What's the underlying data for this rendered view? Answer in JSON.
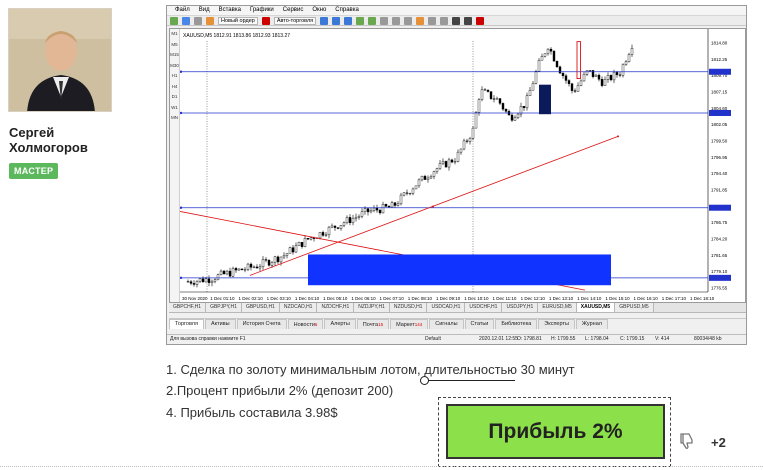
{
  "author": {
    "name_line1": "Сергей",
    "name_line2": "Холмогоров",
    "badge": "МАСТЕР"
  },
  "terminal": {
    "menu": [
      "Файл",
      "Вид",
      "Вставка",
      "Графики",
      "Сервис",
      "Окно",
      "Справка"
    ],
    "toolbar": {
      "new_order": "Новый ордер",
      "auto_trading": "Авто-торговля"
    },
    "chart_header": "XAUUSD,M5  1812.91 1813.86 1812.93 1813.27",
    "timeframes": [
      "M1",
      "M5",
      "M15",
      "M30",
      "H1",
      "H4",
      "D1",
      "W1",
      "MN"
    ],
    "price_labels": [
      "1814.80",
      "1812.25",
      "1809.70",
      "1807.15",
      "1804.60",
      "1802.05",
      "1799.50",
      "1796.95",
      "1794.40",
      "1791.85",
      "1789.30",
      "1786.75",
      "1784.20",
      "1781.65",
      "1779.10",
      "1776.55"
    ],
    "time_labels": [
      "30 Nov 2020",
      "1 Dec 01:10",
      "1 Dec 02:10",
      "1 Dec 03:10",
      "1 Dec 04:10",
      "1 Dec 05:10",
      "1 Dec 06:10",
      "1 Dec 07:10",
      "1 Dec 08:10",
      "1 Dec 09:10",
      "1 Dec 10:10",
      "1 Dec 11:10",
      "1 Dec 12:10",
      "1 Dec 13:10",
      "1 Dec 14:10",
      "1 Dec 15:10",
      "1 Dec 16:10",
      "1 Dec 17:10",
      "1 Dec 18:10"
    ],
    "symbol_tabs": [
      "GBPCHF,H1",
      "GBPJPY,H1",
      "GBPUSD,H1",
      "NZDCAD,H1",
      "NZDCHF,H1",
      "NZDJPY,H1",
      "NZDUSD,H1",
      "USDCAD,H1",
      "USDCHF,H1",
      "USDJPY,H1",
      "EURUSD,M5",
      "XAUUSD,M5",
      "GBPUSD,M5"
    ],
    "active_symbol_tab": "XAUUSD,M5",
    "terminal_tabs": [
      {
        "label": "Торговля",
        "count": ""
      },
      {
        "label": "Активы",
        "count": ""
      },
      {
        "label": "История Счета",
        "count": ""
      },
      {
        "label": "Новости",
        "count": "6"
      },
      {
        "label": "Алерты",
        "count": ""
      },
      {
        "label": "Почта",
        "count": "15"
      },
      {
        "label": "Маркет",
        "count": "144"
      },
      {
        "label": "Сигналы",
        "count": ""
      },
      {
        "label": "Статьи",
        "count": ""
      },
      {
        "label": "Библиотека",
        "count": ""
      },
      {
        "label": "Эксперты",
        "count": ""
      },
      {
        "label": "Журнал",
        "count": ""
      }
    ],
    "status": {
      "help": "Для вызова справки нажмите F1",
      "profile": "Default",
      "datetime": "2020.12.01 12:55",
      "open": "O: 1798.81",
      "high": "H: 1799.55",
      "low": "L: 1798.04",
      "close": "C: 1799.15",
      "volume": "V: 414",
      "traffic": "80034/48 kb"
    }
  },
  "post": {
    "line1": "1. Сделка по золоту минимальным лотом, длительностью 30 минут",
    "line2": "2.Процент прибыли 2% (депозит 200)",
    "line3": "4. Прибыль составила 3.98$"
  },
  "callout": {
    "text": "Прибыль 2%"
  },
  "votes": {
    "count": "+2",
    "icon": "thumbs-down-icon"
  },
  "colors": {
    "badge": "#5cb85c",
    "callout": "#8ce04a",
    "hline": "#2233cc",
    "trendline": "#dd1111",
    "zone": "#1133ff"
  }
}
